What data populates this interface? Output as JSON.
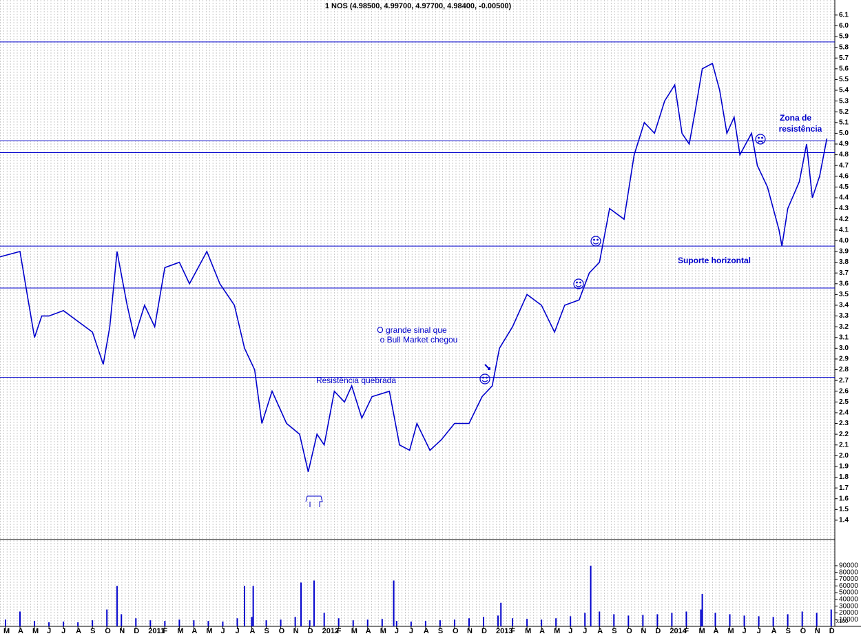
{
  "chart_data": [
    {
      "type": "line",
      "title": "1 NOS (4.98500, 4.99700, 4.97700, 4.98400, -0.00500)",
      "categories": [
        "M",
        "A",
        "M",
        "J",
        "J",
        "A",
        "S",
        "O",
        "N",
        "D",
        "2011",
        "F",
        "M",
        "A",
        "M",
        "J",
        "J",
        "A",
        "S",
        "O",
        "N",
        "D",
        "2012",
        "F",
        "M",
        "A",
        "M",
        "J",
        "J",
        "A",
        "S",
        "O",
        "N",
        "D",
        "2013",
        "F",
        "M",
        "A",
        "M",
        "J",
        "J",
        "A",
        "S",
        "O",
        "N",
        "D",
        "2014",
        "F",
        "M",
        "A",
        "M",
        "J",
        "J",
        "A",
        "S",
        "O",
        "N",
        "D"
      ],
      "x": [
        -0.4,
        1,
        1.5,
        2,
        2.5,
        3,
        4,
        5,
        6,
        6.75,
        7.2,
        7.7,
        8.4,
        8.9,
        9.6,
        10.3,
        11,
        12,
        12.7,
        13.9,
        14.8,
        15.8,
        16.5,
        17.2,
        17.7,
        18.4,
        19.4,
        20.3,
        20.9,
        21.5,
        22,
        22.7,
        23.4,
        23.9,
        24.6,
        25.3,
        26.5,
        27.2,
        27.9,
        28.4,
        29.3,
        30.1,
        31,
        32,
        32.9,
        33.6,
        34.1,
        35,
        36,
        37,
        37.9,
        38.6,
        39.6,
        40.3,
        41,
        41.7,
        42.7,
        43.4,
        44.1,
        44.8,
        45.5,
        46.2,
        46.7,
        47.2,
        47.6,
        48.1,
        48.8,
        49.3,
        49.8,
        50.3,
        50.7,
        51.5,
        51.9,
        52.6,
        53.4,
        53.6,
        54,
        54.8,
        55.3,
        55.7,
        56.2,
        56.7
      ],
      "values": [
        3.85,
        3.9,
        3.5,
        3.1,
        3.3,
        3.3,
        3.35,
        3.25,
        3.15,
        2.85,
        3.2,
        3.9,
        3.4,
        3.1,
        3.4,
        3.2,
        3.75,
        3.8,
        3.6,
        3.9,
        3.6,
        3.4,
        3.0,
        2.8,
        2.3,
        2.6,
        2.3,
        2.2,
        1.85,
        2.2,
        2.1,
        2.6,
        2.5,
        2.65,
        2.35,
        2.55,
        2.6,
        2.1,
        2.05,
        2.3,
        2.05,
        2.15,
        2.3,
        2.3,
        2.55,
        2.65,
        3.0,
        3.2,
        3.5,
        3.4,
        3.15,
        3.4,
        3.45,
        3.7,
        3.8,
        4.3,
        4.2,
        4.8,
        5.1,
        5.0,
        5.3,
        5.45,
        5.0,
        4.9,
        5.2,
        5.6,
        5.65,
        5.4,
        5.0,
        5.15,
        4.8,
        5.0,
        4.7,
        4.5,
        4.1,
        3.95,
        4.3,
        4.55,
        4.9,
        4.4,
        4.6,
        4.95
      ],
      "color": "#0000cc",
      "xlim": [
        -0.38,
        57.25
      ],
      "ylim": [
        1.22,
        6.24
      ],
      "yticks": [
        1.4,
        1.5,
        1.6,
        1.7,
        1.8,
        1.9,
        {
          "value": 2,
          "label": "2.0"
        },
        2.1,
        2.2,
        2.3,
        2.4,
        2.5,
        2.6,
        2.7,
        2.8,
        2.9,
        {
          "value": 3,
          "label": "3.0"
        },
        3.1,
        3.2,
        3.3,
        3.4,
        3.5,
        3.6,
        3.7,
        3.8,
        3.9,
        {
          "value": 4,
          "label": "4.0"
        },
        4.1,
        4.2,
        4.3,
        4.4,
        4.5,
        4.6,
        4.7,
        4.8,
        4.9,
        {
          "value": 5,
          "label": "5.0"
        },
        5.1,
        5.2,
        5.3,
        5.4,
        5.5,
        5.6,
        5.7,
        5.8,
        5.9,
        {
          "value": 6,
          "label": "6.0"
        },
        6.1
      ],
      "hlines": [
        5.85,
        4.93,
        4.82,
        3.95,
        3.56,
        2.73
      ],
      "annotations": [
        "Resistência quebrada",
        "O grande sinal que",
        "o Bull Market chegou",
        "Suporte horizontal",
        "Zona de",
        "resistência"
      ]
    },
    {
      "type": "bar",
      "x": [
        0,
        1,
        2,
        3,
        4,
        5,
        6,
        7,
        8,
        9,
        10,
        11,
        12,
        13,
        14,
        15,
        16,
        17,
        18,
        19,
        20,
        21,
        22,
        23,
        24,
        25,
        26,
        27,
        28,
        29,
        30,
        31,
        32,
        33,
        34,
        35,
        36,
        37,
        38,
        39,
        40,
        41,
        42,
        43,
        44,
        45,
        46,
        47,
        48,
        49,
        50,
        51,
        52,
        53,
        54,
        55,
        56,
        57,
        7.7,
        16.5,
        17.1,
        20.4,
        21.3,
        26.8,
        34.2,
        40.4,
        48.1
      ],
      "values": [
        10000,
        22000,
        8000,
        6000,
        7000,
        6000,
        9000,
        25000,
        18000,
        12000,
        9000,
        8000,
        10000,
        9000,
        8000,
        7000,
        12000,
        14000,
        9000,
        10000,
        14000,
        9000,
        20000,
        12000,
        9000,
        10000,
        11000,
        8000,
        7000,
        8000,
        9000,
        10000,
        12000,
        14000,
        16000,
        12000,
        11000,
        10000,
        12000,
        15000,
        20000,
        22000,
        18000,
        16000,
        17000,
        18000,
        20000,
        22000,
        25000,
        20000,
        18000,
        16000,
        15000,
        14000,
        18000,
        22000,
        20000,
        25000,
        60000,
        60000,
        60000,
        65000,
        68000,
        68000,
        35000,
        90000,
        48000
      ],
      "color": "#0000cc",
      "ylim": [
        0,
        127800
      ],
      "yticks": [
        10000,
        20000,
        30000,
        40000,
        50000,
        60000,
        70000,
        80000,
        90000
      ],
      "unit_label": "x100"
    }
  ]
}
